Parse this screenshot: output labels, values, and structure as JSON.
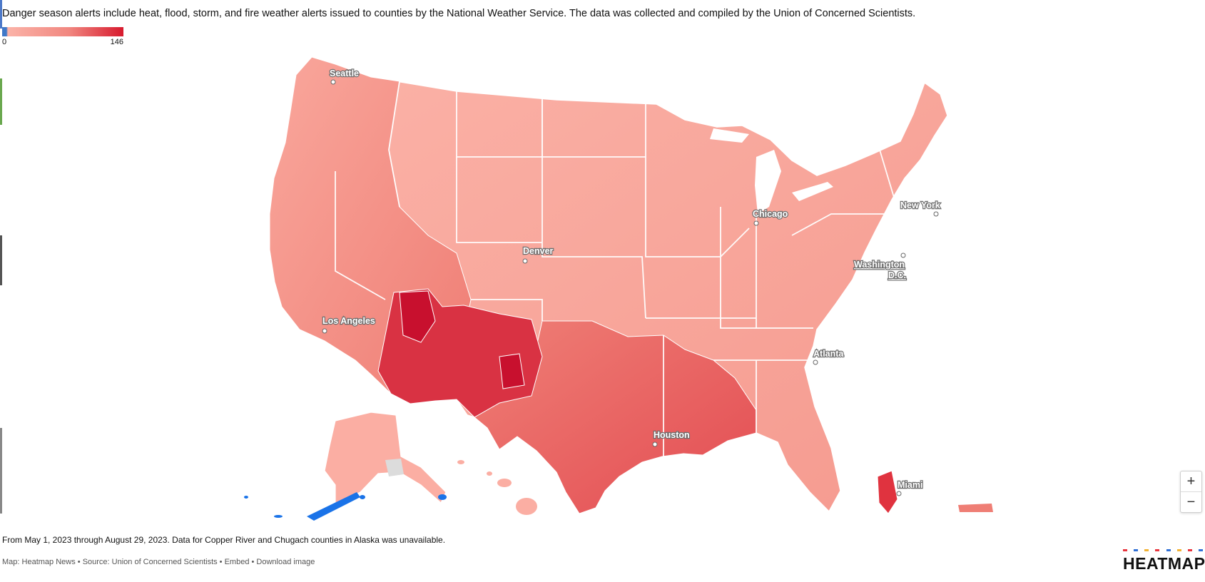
{
  "description": "Danger season alerts include heat, flood, storm, and fire weather alerts issued to counties by the National Weather Service. The data was collected and compiled by the Union of Concerned Scientists.",
  "legend": {
    "min": "0",
    "max": "146",
    "colors": {
      "zero": "#3f78c8",
      "low": "#fbb3a8",
      "mid": "#f18780",
      "high": "#d71a2e"
    }
  },
  "map": {
    "cities": [
      {
        "id": "seattle",
        "label": "Seattle"
      },
      {
        "id": "los-angeles",
        "label": "Los Angeles"
      },
      {
        "id": "denver",
        "label": "Denver"
      },
      {
        "id": "chicago",
        "label": "Chicago"
      },
      {
        "id": "new-york",
        "label": "New York"
      },
      {
        "id": "washington",
        "label_line1": "Washington",
        "label_line2": "D.C."
      },
      {
        "id": "atlanta",
        "label": "Atlanta"
      },
      {
        "id": "houston",
        "label": "Houston"
      },
      {
        "id": "miami",
        "label": "Miami"
      }
    ],
    "zoom_in_label": "+",
    "zoom_out_label": "−"
  },
  "footnote": "From May 1, 2023 through August 29, 2023. Data for Copper River and Chugach counties in Alaska was unavailable.",
  "credits": {
    "map_by": "Map: Heatmap News",
    "sep1": " • ",
    "source": "Source: Union of Concerned Scientists",
    "sep2": " • ",
    "embed": "Embed",
    "sep3": " • ",
    "download": "Download image"
  },
  "logo": {
    "text": "HEATMAP",
    "dot_colors": [
      "#e8343c",
      "#2f6fd6",
      "#f2b233",
      "#e8343c",
      "#2f6fd6",
      "#f2b233",
      "#e8343c",
      "#2f6fd6"
    ]
  }
}
